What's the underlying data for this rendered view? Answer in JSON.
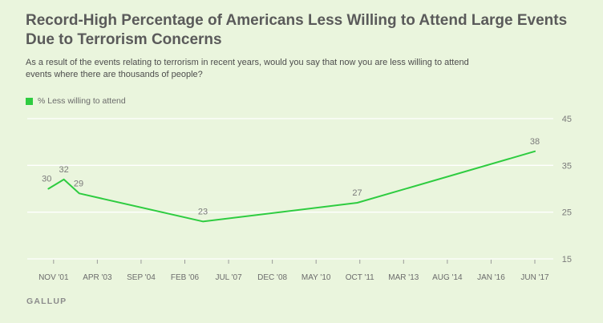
{
  "title": "Record-High Percentage of Americans Less Willing to Attend Large Events Due to Terrorism Concerns",
  "subtitle": "As a result of the events relating to terrorism in recent years, would you say that now you are less willing to attend events where there are thousands of people?",
  "source": "GALLUP",
  "colors": {
    "line": "#2ecc40",
    "grid": "#ffffff",
    "text": "#6b6b6b",
    "background": "#eaf5dd"
  },
  "chart_data": {
    "type": "line",
    "title": "Record-High Percentage of Americans Less Willing to Attend Large Events Due to Terrorism Concerns",
    "xlabel": "",
    "ylabel": "",
    "ylim": [
      15,
      45
    ],
    "yticks": [
      15,
      25,
      35,
      45
    ],
    "y_axis_position": "right",
    "grid": true,
    "legend_position": "top-left",
    "xtick_labels": [
      "NOV '01",
      "APR '03",
      "SEP '04",
      "FEB '06",
      "JUL '07",
      "DEC '08",
      "MAY '10",
      "OCT '11",
      "MAR '13",
      "AUG '14",
      "JAN '16",
      "JUN '17"
    ],
    "xtick_dates": [
      "2001-11",
      "2003-04",
      "2004-09",
      "2006-02",
      "2007-07",
      "2008-12",
      "2010-05",
      "2011-10",
      "2013-03",
      "2014-08",
      "2016-01",
      "2017-06"
    ],
    "series": [
      {
        "name": "% Less willing to attend",
        "points": [
          {
            "x": "2001-09",
            "y": 30
          },
          {
            "x": "2002-03",
            "y": 32
          },
          {
            "x": "2002-09",
            "y": 29
          },
          {
            "x": "2006-09",
            "y": 23
          },
          {
            "x": "2011-09",
            "y": 27
          },
          {
            "x": "2017-06",
            "y": 38
          }
        ]
      }
    ]
  }
}
